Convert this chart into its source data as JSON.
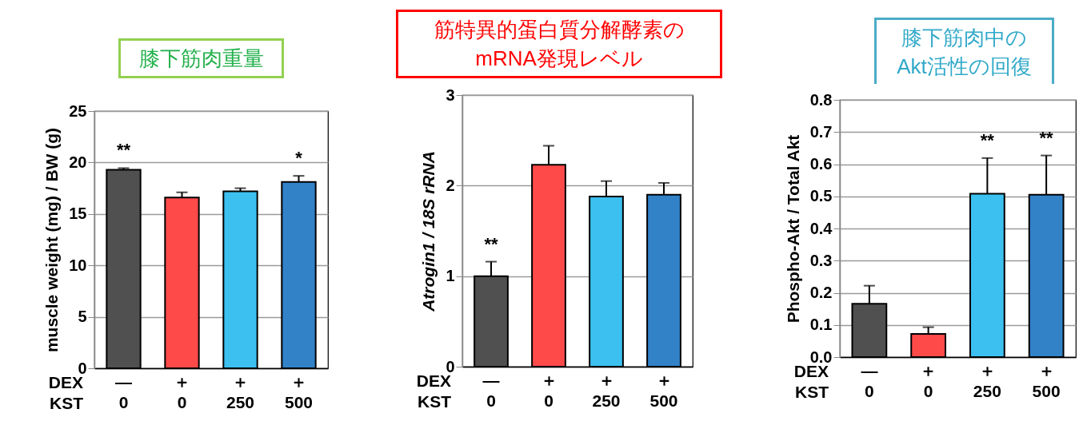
{
  "chart_data": [
    {
      "type": "bar",
      "title": "膝下筋肉重量",
      "ylabel": "muscle weight (mg) / BW (g)",
      "categories": [
        "—\n0",
        "＋\n0",
        "＋\n250",
        "＋\n500"
      ],
      "values": [
        19.3,
        16.6,
        17.2,
        18.1
      ],
      "errors": [
        [
          19.3,
          19.45
        ],
        [
          16.6,
          17.1
        ],
        [
          17.2,
          17.5
        ],
        [
          18.1,
          18.7
        ]
      ],
      "colors": [
        "#505050",
        "#ff4a4a",
        "#3cc0f0",
        "#3282c8"
      ],
      "ylim": [
        0,
        25
      ],
      "yticks": [
        0,
        5,
        10,
        15,
        20,
        25
      ],
      "grid": "y",
      "annotations": [
        "DEX",
        "KST",
        {
          "text": "**",
          "x": "—\n0",
          "y": 19.45
        },
        {
          "text": "*",
          "x": "＋\n500",
          "y": 18.7
        }
      ]
    },
    {
      "type": "bar",
      "title": "筋特異的蛋白質分解酵素の\nmRNA発現レベル",
      "ylabel": "Atrogin1 / 18S rRNA",
      "categories": [
        "—\n0",
        "＋\n0",
        "＋\n250",
        "＋\n500"
      ],
      "values": [
        1.0,
        2.23,
        1.88,
        1.9
      ],
      "errors": [
        [
          1.0,
          1.16
        ],
        [
          2.23,
          2.44
        ],
        [
          1.88,
          2.05
        ],
        [
          1.9,
          2.03
        ]
      ],
      "colors": [
        "#505050",
        "#ff4a4a",
        "#3cc0f0",
        "#3282c8"
      ],
      "ylim": [
        0,
        3
      ],
      "yticks": [
        0,
        1,
        2,
        3
      ],
      "grid": "y",
      "annotations": [
        "DEX",
        "KST",
        {
          "text": "**",
          "x": "—\n0",
          "y": 1.16
        }
      ]
    },
    {
      "type": "bar",
      "title": "膝下筋肉中の\nAkt活性の回復",
      "ylabel": "Phospho-Akt / Total Akt",
      "categories": [
        "—\n0",
        "＋\n0",
        "＋\n250",
        "＋\n500"
      ],
      "values": [
        0.166,
        0.072,
        0.508,
        0.505
      ],
      "errors": [
        [
          0.166,
          0.222
        ],
        [
          0.072,
          0.093
        ],
        [
          0.508,
          0.619
        ],
        [
          0.505,
          0.627
        ]
      ],
      "colors": [
        "#505050",
        "#ff4a4a",
        "#3cc0f0",
        "#3282c8"
      ],
      "ylim": [
        0,
        0.8
      ],
      "yticks": [
        {
          "value": 0,
          "label": "0.0"
        },
        0.1,
        0.2,
        0.3,
        0.4,
        0.5,
        0.6,
        0.7,
        0.8
      ],
      "grid": "y",
      "annotations": [
        "DEX",
        "KST",
        {
          "text": "**",
          "x": "＋\n250",
          "y": 0.619
        },
        {
          "text": "**",
          "x": "＋\n500",
          "y": 0.627
        }
      ]
    }
  ]
}
